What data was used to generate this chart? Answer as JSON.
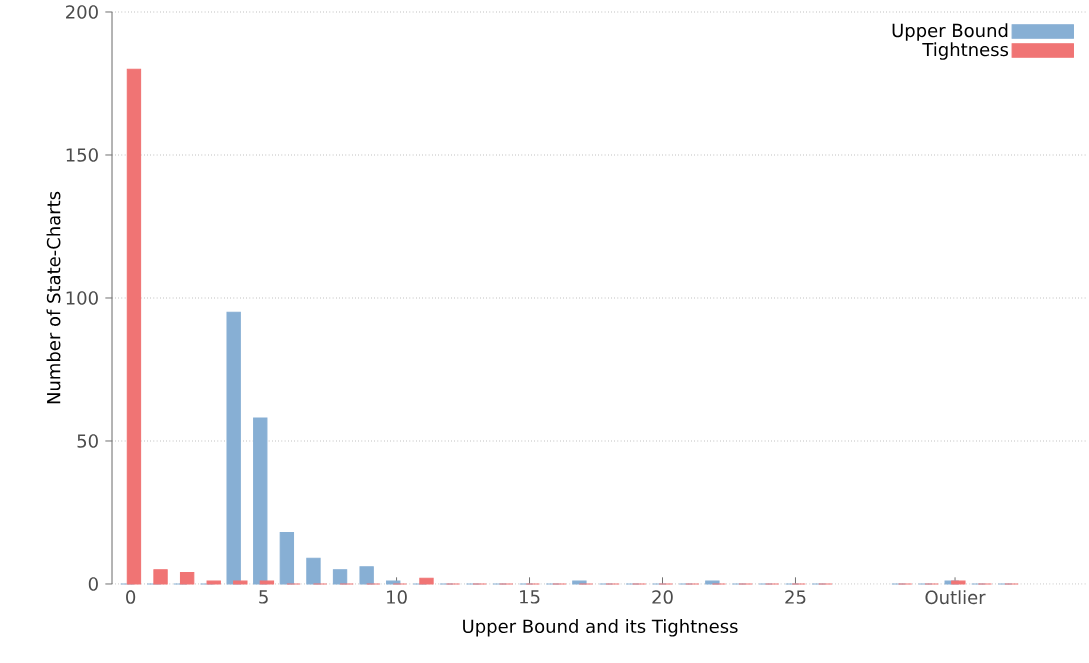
{
  "chart_data": {
    "type": "bar",
    "xlabel": "Upper Bound and its Tightness",
    "ylabel": "Number of State-Charts",
    "x": [
      0,
      1,
      2,
      3,
      4,
      5,
      6,
      7,
      8,
      9,
      10,
      11,
      12,
      13,
      14,
      15,
      16,
      17,
      18,
      19,
      20,
      21,
      22,
      23,
      24,
      25,
      26,
      29,
      30,
      31,
      32,
      33
    ],
    "series": [
      {
        "name": "Upper Bound",
        "color": "#87afd4",
        "values": [
          0,
          0,
          0,
          0,
          95,
          58,
          18,
          9,
          5,
          6,
          1,
          0,
          0,
          0,
          0,
          0,
          0,
          1,
          0,
          0,
          0,
          0,
          1,
          0,
          0,
          0,
          0,
          0,
          0,
          1,
          0,
          0
        ]
      },
      {
        "name": "Tightness",
        "color": "#f07474",
        "values": [
          180,
          5,
          4,
          1,
          1,
          1,
          0,
          0,
          0,
          0,
          0,
          2,
          0,
          0,
          0,
          0,
          0,
          0,
          0,
          0,
          0,
          0,
          0,
          0,
          0,
          0,
          0,
          0,
          0,
          1,
          0,
          0
        ]
      }
    ],
    "xlim": [
      -0.7,
      36
    ],
    "ylim": [
      0,
      200
    ],
    "xticks": [
      0,
      5,
      10,
      15,
      20,
      25,
      {
        "value": 31,
        "label": "Outlier"
      }
    ],
    "yticks": [
      0,
      50,
      100,
      150,
      200
    ],
    "grid": "y",
    "legend": "top right"
  }
}
